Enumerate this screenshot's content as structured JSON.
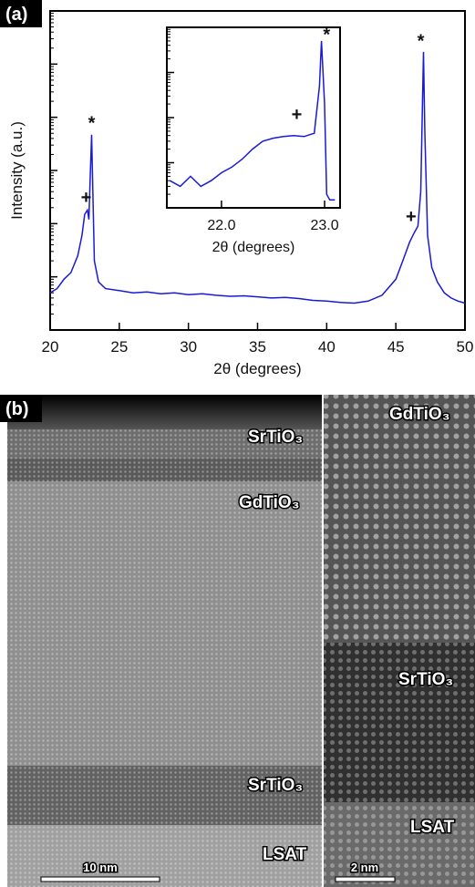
{
  "chart_data": [
    {
      "type": "line",
      "panel_label": "(a)",
      "x_label": "2θ (degrees)",
      "y_label": "Intensity (a.u.)",
      "log_y": true,
      "color": "#1a1ad6",
      "x": [
        20,
        20.5,
        21,
        21.5,
        22,
        22.3,
        22.5,
        22.7,
        22.8,
        22.9,
        23.0,
        23.1,
        23.2,
        23.5,
        24,
        25,
        26,
        27,
        28,
        29,
        30,
        31,
        32,
        33,
        34,
        35,
        36,
        37,
        38,
        39,
        40,
        41,
        42,
        43,
        44,
        45,
        45.5,
        46,
        46.3,
        46.6,
        46.8,
        47.0,
        47.1,
        47.3,
        47.6,
        48,
        48.5,
        49,
        49.5,
        50
      ],
      "values": [
        5,
        6,
        9,
        12,
        25,
        60,
        150,
        180,
        120,
        800,
        4700,
        300,
        20,
        8,
        6,
        5.5,
        5,
        5.2,
        4.8,
        5,
        4.6,
        4.8,
        4.5,
        4.3,
        4.4,
        4.2,
        4,
        4.1,
        3.9,
        3.6,
        3.5,
        3.3,
        3.2,
        3.5,
        4.5,
        9,
        20,
        45,
        65,
        90,
        400,
        170000,
        5000,
        60,
        15,
        8,
        5,
        4,
        3.5,
        3.2
      ],
      "xlim": [
        20,
        50
      ],
      "xticks": [
        20,
        25,
        30,
        35,
        40,
        45,
        50
      ],
      "ylim": [
        1,
        1000000
      ],
      "yticks": [
        1,
        10,
        100,
        1000,
        10000,
        100000,
        1000000
      ],
      "annotations": [
        {
          "text": "+",
          "x": 22.6,
          "y": 316
        },
        {
          "text": "*",
          "x": 23.0,
          "y": 8000
        },
        {
          "text": "+",
          "x": 46.1,
          "y": 140
        },
        {
          "text": "*",
          "x": 46.8,
          "y": 275000
        }
      ]
    },
    {
      "type": "line",
      "x_label": "2θ (degrees)",
      "log_y": true,
      "color": "#1a1ad6",
      "x": [
        21.5,
        21.6,
        21.7,
        21.8,
        21.9,
        22.0,
        22.1,
        22.2,
        22.3,
        22.4,
        22.5,
        22.6,
        22.7,
        22.8,
        22.9,
        22.95,
        22.97,
        23.0,
        23.02,
        23.05,
        23.1
      ],
      "values": [
        4,
        3,
        5,
        3,
        4,
        6,
        8,
        12,
        20,
        30,
        35,
        38,
        40,
        38,
        45,
        500,
        5000,
        200,
        2,
        1.5,
        1.5
      ],
      "xlim": [
        21.47,
        23.15
      ],
      "xticks": [
        {
          "value": 22,
          "label": "22.0"
        },
        {
          "value": 23,
          "label": "23.0"
        }
      ],
      "ylim": [
        1,
        10000
      ],
      "yticks": [
        1,
        10,
        100,
        1000,
        10000
      ],
      "annotations": [
        {
          "text": "*",
          "x": 23.02,
          "y": 7000
        },
        {
          "text": "+",
          "x": 22.73,
          "y": 120
        }
      ]
    }
  ],
  "panel_b": {
    "panel_label": "(b)",
    "left_labels": [
      "SrTiO₃",
      "GdTiO₃",
      "SrTiO₃",
      "LSAT"
    ],
    "right_labels": [
      "GdTiO₃",
      "SrTiO₃",
      "LSAT"
    ],
    "scale_bars": [
      "10 nm",
      "2 nm"
    ]
  }
}
